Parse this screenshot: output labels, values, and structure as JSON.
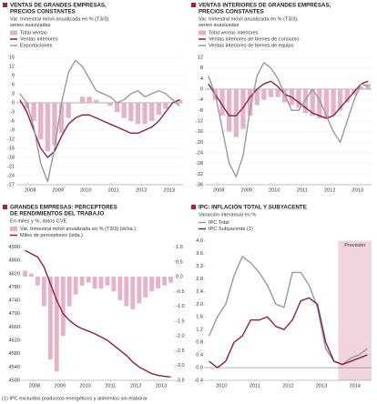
{
  "chart_data": [
    {
      "type": "combo",
      "title": [
        "VENTAS DE GRANDES EMPRESAS,",
        "PRECIOS CONSTANTES"
      ],
      "subtitle": [
        "Var. trimestral móvil anualizada en % (T3/3),",
        "series suavizadas"
      ],
      "x": [
        2008.125,
        2008.375,
        2008.625,
        2008.875,
        2009.125,
        2009.375,
        2009.625,
        2009.875,
        2010.125,
        2010.375,
        2010.625,
        2010.875,
        2011.125,
        2011.375,
        2011.625,
        2011.875,
        2012.125,
        2012.375,
        2012.625,
        2012.875,
        2013.125,
        2013.375,
        2013.625,
        2013.875
      ],
      "xlim": [
        2008,
        2014
      ],
      "xticks": [
        {
          "value": 2008.5,
          "label": "2008"
        },
        {
          "value": 2009.5,
          "label": "2009"
        },
        {
          "value": 2010.5,
          "label": "2010"
        },
        {
          "value": 2011.5,
          "label": "2011"
        },
        {
          "value": 2012.5,
          "label": "2012"
        },
        {
          "value": 2013.5,
          "label": "2013"
        }
      ],
      "ylim": [
        -27,
        15
      ],
      "yticks": [
        15,
        12,
        9,
        6,
        3,
        0,
        -3,
        -6,
        -9,
        -12,
        -15,
        -18,
        -21,
        -24,
        -27
      ],
      "grid": true,
      "series": [
        {
          "name": "Total ventas",
          "kind": "bar",
          "color": "#e6b3c6",
          "values": [
            0,
            -2,
            -6,
            -12,
            -16,
            -14,
            -10,
            -5,
            0,
            2,
            2,
            1,
            0,
            -1,
            -3,
            -5,
            -6,
            -7,
            -7,
            -6,
            -4,
            -2,
            0,
            1
          ]
        },
        {
          "name": "Ventas interiores",
          "kind": "line",
          "color": "#8c1d4f",
          "values": [
            1,
            -3,
            -9,
            -15,
            -18,
            -16,
            -11,
            -7,
            -5,
            -4,
            -4,
            -5,
            -6,
            -7,
            -8,
            -9,
            -10,
            -10,
            -9,
            -8,
            -6,
            -3,
            0,
            1
          ]
        },
        {
          "name": "Exportaciones",
          "kind": "line",
          "color": "#9a9a9a",
          "values": [
            3,
            0,
            -8,
            -20,
            -26,
            -15,
            0,
            10,
            14,
            12,
            8,
            4,
            3,
            2,
            0,
            1,
            3,
            4,
            2,
            3,
            4,
            3,
            1,
            -1
          ]
        }
      ]
    },
    {
      "type": "combo",
      "title": [
        "VENTAS INTERIORES DE GRANDES EMPRESAS,",
        "PRECIOS CONSTANTES"
      ],
      "subtitle": [
        "Var. trimestral móvil anualizada en % (T3/3),",
        "series suavizadas"
      ],
      "x": [
        2008.125,
        2008.375,
        2008.625,
        2008.875,
        2009.125,
        2009.375,
        2009.625,
        2009.875,
        2010.125,
        2010.375,
        2010.625,
        2010.875,
        2011.125,
        2011.375,
        2011.625,
        2011.875,
        2012.125,
        2012.375,
        2012.625,
        2012.875,
        2013.125,
        2013.375,
        2013.625,
        2013.875
      ],
      "xlim": [
        2008,
        2014
      ],
      "xticks": [
        {
          "value": 2008.5,
          "label": "2008"
        },
        {
          "value": 2009.5,
          "label": "2009"
        },
        {
          "value": 2010.5,
          "label": "2010"
        },
        {
          "value": 2011.5,
          "label": "2011"
        },
        {
          "value": 2012.5,
          "label": "2012"
        },
        {
          "value": 2013.5,
          "label": "2013"
        }
      ],
      "ylim": [
        -36,
        12
      ],
      "yticks": [
        12,
        8,
        4,
        0,
        -4,
        -8,
        -12,
        -16,
        -20,
        -24,
        -28,
        -32,
        -36
      ],
      "grid": true,
      "series": [
        {
          "name": "Total ventas interiores",
          "kind": "bar",
          "color": "#e6b3c6",
          "values": [
            0,
            -4,
            -10,
            -16,
            -18,
            -15,
            -10,
            -6,
            -4,
            -3,
            -3,
            -5,
            -6,
            -7,
            -9,
            -10,
            -11,
            -11,
            -10,
            -8,
            -5,
            -2,
            1,
            2
          ]
        },
        {
          "name": "Ventas interiores de bienes de consumo",
          "kind": "line",
          "color": "#8c1d4f",
          "values": [
            2,
            -2,
            -6,
            -10,
            -10,
            -7,
            -3,
            0,
            2,
            3,
            1,
            -2,
            -3,
            -5,
            -7,
            -9,
            -10,
            -11,
            -10,
            -7,
            -4,
            -1,
            2,
            3
          ]
        },
        {
          "name": "Ventas interiores de bienes de equipo",
          "kind": "line",
          "color": "#9a9a9a",
          "values": [
            5,
            -2,
            -15,
            -28,
            -33,
            -25,
            -8,
            5,
            10,
            8,
            4,
            -2,
            -8,
            -8,
            -4,
            0,
            -4,
            -10,
            -16,
            -20,
            -12,
            -4,
            2,
            1
          ]
        }
      ]
    },
    {
      "type": "combo",
      "title": [
        "GRANDES EMPRESAS: PERCEPTORES",
        "DE RENDIMIENTOS DEL TRABAJO"
      ],
      "subtitle": [
        "En miles y %, datos CVE"
      ],
      "x": [
        2008.125,
        2008.375,
        2008.625,
        2008.875,
        2009.125,
        2009.375,
        2009.625,
        2009.875,
        2010.125,
        2010.375,
        2010.625,
        2010.875,
        2011.125,
        2011.375,
        2011.625,
        2011.875,
        2012.125,
        2012.375,
        2012.625,
        2012.875,
        2013.125,
        2013.375,
        2013.625,
        2013.875
      ],
      "xlim": [
        2008,
        2014
      ],
      "xticks": [
        {
          "value": 2008.5,
          "label": "2008"
        },
        {
          "value": 2009.5,
          "label": "2009"
        },
        {
          "value": 2010.5,
          "label": "2010"
        },
        {
          "value": 2011.5,
          "label": "2011"
        },
        {
          "value": 2012.5,
          "label": "2012"
        },
        {
          "value": 2013.5,
          "label": "2013"
        }
      ],
      "ylim": [
        4500,
        4900
      ],
      "yticks": [
        4900,
        4860,
        4820,
        4780,
        4740,
        4700,
        4660,
        4620,
        4580,
        4540,
        4500
      ],
      "y2lim": [
        -3.5,
        1.0
      ],
      "y2ticks": [
        {
          "value": 1.0,
          "label": "1.0"
        },
        0.5,
        {
          "value": 0.0,
          "label": "0.0"
        },
        -0.5,
        {
          "value": -1.0,
          "label": "-1.0"
        },
        -1.5,
        {
          "value": -2.0,
          "label": "-2.0"
        },
        -2.5,
        {
          "value": -3.0,
          "label": "-3.0"
        },
        -3.5
      ],
      "grid": false,
      "series": [
        {
          "name": "Var. trimestral móvil anualizada en % (T3/3) (dcha.)",
          "kind": "bar",
          "axis": "y2",
          "color": "#e6b3c6",
          "values": [
            0.2,
            0.1,
            -0.3,
            -1.0,
            -2.8,
            -3.2,
            -2.0,
            -1.0,
            -0.6,
            -0.3,
            -0.2,
            -0.4,
            -0.4,
            -0.3,
            -0.5,
            -0.8,
            -1.0,
            -1.1,
            -0.9,
            -0.7,
            -0.5,
            -0.4,
            -0.3,
            -0.2
          ]
        },
        {
          "name": "Miles de perceptores (izda.)",
          "kind": "line",
          "color": "#8c1d4f",
          "values": [
            4890,
            4880,
            4870,
            4840,
            4790,
            4740,
            4700,
            4680,
            4665,
            4655,
            4648,
            4640,
            4630,
            4620,
            4605,
            4590,
            4575,
            4555,
            4540,
            4530,
            4520,
            4515,
            4512,
            4510
          ]
        }
      ]
    },
    {
      "type": "line",
      "title": [
        "IPC: INFLACIÓN TOTAL Y SUBYACENTE"
      ],
      "subtitle": [
        "Variación interanual en %"
      ],
      "x": [
        2010.125,
        2010.375,
        2010.625,
        2010.875,
        2011.125,
        2011.375,
        2011.625,
        2011.875,
        2012.125,
        2012.375,
        2012.625,
        2012.875,
        2013.125,
        2013.375,
        2013.625,
        2013.875,
        2014.125,
        2014.375,
        2014.625,
        2014.875
      ],
      "xlim": [
        2010,
        2015
      ],
      "xticks": [
        {
          "value": 2010.5,
          "label": "2010"
        },
        {
          "value": 2011.5,
          "label": "2011"
        },
        {
          "value": 2012.5,
          "label": "2012"
        },
        {
          "value": 2013.5,
          "label": "2013"
        },
        {
          "value": 2014.5,
          "label": "2014"
        }
      ],
      "ylim": [
        -0.4,
        4.0
      ],
      "yticks": [
        {
          "value": 4.0,
          "label": "4.0"
        },
        3.6,
        3.2,
        2.8,
        2.4,
        {
          "value": 2.0,
          "label": "2.0"
        },
        1.6,
        1.2,
        0.8,
        0.4,
        {
          "value": 0.0,
          "label": "0.0"
        },
        -0.4
      ],
      "grid": false,
      "forecast": {
        "start": 2014,
        "label": "Previsión",
        "color": "#f0d5e0"
      },
      "series": [
        {
          "name": "IPC Total",
          "kind": "line",
          "color": "#9a9a9a",
          "values": [
            1.0,
            1.6,
            2.0,
            2.9,
            3.5,
            3.3,
            3.0,
            2.6,
            2.0,
            1.9,
            3.0,
            3.0,
            2.6,
            1.9,
            0.6,
            0.2,
            0.1,
            0.3,
            0.4,
            0.6
          ]
        },
        {
          "name": "IPC Subyacente (1)",
          "kind": "line",
          "color": "#8c1d4f",
          "values": [
            0.2,
            0.0,
            0.2,
            0.8,
            1.0,
            1.5,
            1.5,
            1.6,
            1.3,
            1.2,
            1.5,
            2.1,
            2.2,
            2.0,
            0.8,
            0.2,
            0.1,
            0.2,
            0.3,
            0.4
          ]
        }
      ]
    }
  ],
  "footnote": "(1) IPC excluidos productos energéticos y alimentos sin elaborar"
}
